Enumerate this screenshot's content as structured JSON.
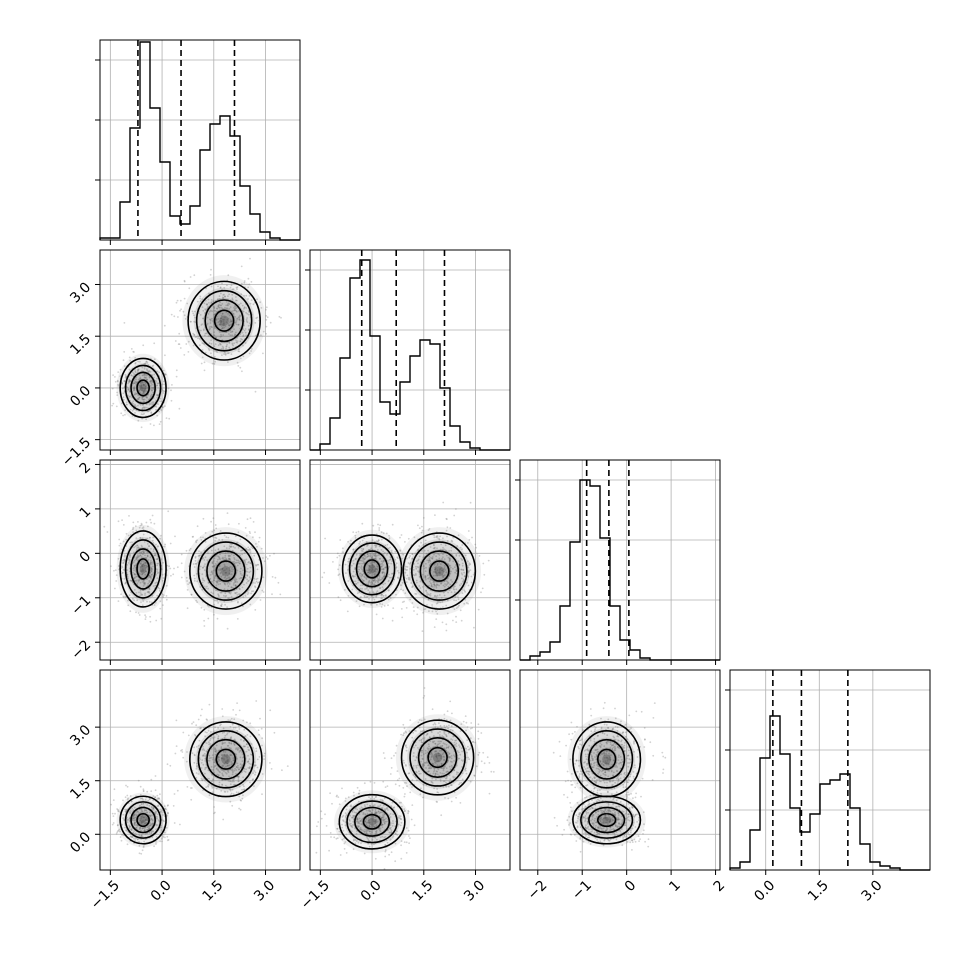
{
  "chart_data": {
    "type": "corner",
    "title": "",
    "grid": true,
    "ranges": [
      [
        -1.8,
        4.0
      ],
      [
        -1.8,
        4.0
      ],
      [
        -2.4,
        2.1
      ],
      [
        -1.0,
        4.6
      ]
    ],
    "ticks": [
      {
        "values": [
          -1.5,
          0.0,
          1.5,
          3.0
        ],
        "labels": [
          "−1.5",
          "0.0",
          "1.5",
          "3.0"
        ]
      },
      {
        "values": [
          -1.5,
          0.0,
          1.5,
          3.0
        ],
        "labels": [
          "−1.5",
          "0.0",
          "1.5",
          "3.0"
        ]
      },
      {
        "values": [
          -2,
          -1,
          0,
          1,
          2
        ],
        "labels": [
          "−2",
          "−1",
          "0",
          "1",
          "2"
        ]
      },
      {
        "values": [
          0.0,
          1.5,
          3.0
        ],
        "labels": [
          "0.0",
          "1.5",
          "3.0"
        ]
      }
    ],
    "y_ticks_rows": [
      {
        "row": 1,
        "values": [
          -1.5,
          0.0,
          1.5,
          3.0
        ],
        "labels": [
          "−1.5",
          "0.0",
          "1.5",
          "3.0"
        ]
      },
      {
        "row": 2,
        "values": [
          -2,
          -1,
          0,
          1,
          2
        ],
        "labels": [
          "−2",
          "−1",
          "0",
          "1",
          "2"
        ]
      },
      {
        "row": 3,
        "values": [
          0.0,
          1.5,
          3.0
        ],
        "labels": [
          "0.0",
          "1.5",
          "3.0"
        ]
      }
    ],
    "histograms": [
      {
        "var": 0,
        "bin_edges_range": [
          -1.8,
          4.0
        ],
        "counts": [
          0.01,
          0.01,
          0.19,
          0.56,
          0.99,
          0.66,
          0.39,
          0.12,
          0.08,
          0.17,
          0.45,
          0.58,
          0.62,
          0.52,
          0.27,
          0.13,
          0.04,
          0.01,
          0.0,
          0.0
        ],
        "quantiles": [
          -0.7,
          0.55,
          2.1
        ]
      },
      {
        "var": 1,
        "bin_edges_range": [
          -1.8,
          4.0
        ],
        "counts": [
          0.0,
          0.03,
          0.16,
          0.46,
          0.86,
          0.95,
          0.57,
          0.24,
          0.18,
          0.34,
          0.47,
          0.55,
          0.53,
          0.31,
          0.12,
          0.04,
          0.01,
          0.0,
          0.0,
          0.0
        ],
        "quantiles": [
          -0.3,
          0.7,
          2.1
        ]
      },
      {
        "var": 2,
        "bin_edges_range": [
          -2.4,
          2.1
        ],
        "counts": [
          0.0,
          0.02,
          0.04,
          0.09,
          0.27,
          0.59,
          0.9,
          0.87,
          0.61,
          0.27,
          0.1,
          0.05,
          0.01,
          0.0,
          0.0,
          0.0,
          0.0,
          0.0,
          0.0,
          0.0
        ],
        "quantiles": [
          -0.9,
          -0.4,
          0.05
        ]
      },
      {
        "var": 3,
        "bin_edges_range": [
          -1.0,
          4.6
        ],
        "counts": [
          0.01,
          0.04,
          0.2,
          0.56,
          0.77,
          0.58,
          0.31,
          0.19,
          0.28,
          0.43,
          0.45,
          0.48,
          0.31,
          0.13,
          0.04,
          0.02,
          0.01,
          0.0,
          0.0,
          0.0
        ],
        "quantiles": [
          0.2,
          1.0,
          2.3
        ]
      }
    ],
    "scatter_clusters": [
      {
        "cols": [
          0,
          1
        ],
        "clusters": [
          {
            "mx": -0.55,
            "my": 0.0,
            "sx": 0.35,
            "sy": 0.45
          },
          {
            "mx": 1.8,
            "my": 1.95,
            "sx": 0.55,
            "sy": 0.6
          }
        ]
      },
      {
        "cols": [
          0,
          2
        ],
        "clusters": [
          {
            "mx": -0.55,
            "my": -0.35,
            "sx": 0.35,
            "sy": 0.45
          },
          {
            "mx": 1.85,
            "my": -0.4,
            "sx": 0.55,
            "sy": 0.45
          }
        ]
      },
      {
        "cols": [
          1,
          2
        ],
        "clusters": [
          {
            "mx": 0.0,
            "my": -0.35,
            "sx": 0.45,
            "sy": 0.4
          },
          {
            "mx": 1.95,
            "my": -0.4,
            "sx": 0.55,
            "sy": 0.45
          }
        ]
      },
      {
        "cols": [
          0,
          3
        ],
        "clusters": [
          {
            "mx": -0.55,
            "my": 0.4,
            "sx": 0.35,
            "sy": 0.35
          },
          {
            "mx": 1.85,
            "my": 2.1,
            "sx": 0.55,
            "sy": 0.55
          }
        ]
      },
      {
        "cols": [
          1,
          3
        ],
        "clusters": [
          {
            "mx": 0.0,
            "my": 0.35,
            "sx": 0.5,
            "sy": 0.4
          },
          {
            "mx": 1.9,
            "my": 2.15,
            "sx": 0.55,
            "sy": 0.55
          }
        ]
      },
      {
        "cols": [
          2,
          3
        ],
        "clusters": [
          {
            "mx": -0.45,
            "my": 0.4,
            "sx": 0.4,
            "sy": 0.35
          },
          {
            "mx": -0.45,
            "my": 2.1,
            "sx": 0.4,
            "sy": 0.55
          }
        ]
      }
    ]
  }
}
